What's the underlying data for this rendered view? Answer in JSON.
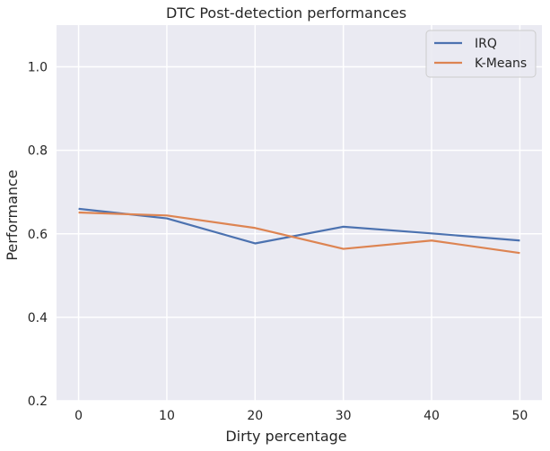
{
  "chart_data": {
    "type": "line",
    "title": "DTC Post-detection performances",
    "xlabel": "Dirty percentage",
    "ylabel": "Performance",
    "x": [
      0,
      10,
      20,
      30,
      40,
      50
    ],
    "xlim": [
      -2.5,
      52.5
    ],
    "ylim": [
      0.2,
      1.1
    ],
    "xticks": [
      "0",
      "10",
      "20",
      "30",
      "40",
      "50"
    ],
    "xtick_values": [
      0,
      10,
      20,
      30,
      40,
      50
    ],
    "yticks": [
      "0.2",
      "0.4",
      "0.6",
      "0.8",
      "1.0"
    ],
    "ytick_values": [
      0.2,
      0.4,
      0.6,
      0.8,
      1.0
    ],
    "grid": true,
    "legend_position": "top-right",
    "series": [
      {
        "name": "IRQ",
        "color": "#4c72b0",
        "values": [
          0.66,
          0.637,
          0.577,
          0.617,
          0.601,
          0.584
        ]
      },
      {
        "name": "K-Means",
        "color": "#dd8452",
        "values": [
          0.651,
          0.644,
          0.614,
          0.564,
          0.584,
          0.554
        ]
      }
    ]
  }
}
